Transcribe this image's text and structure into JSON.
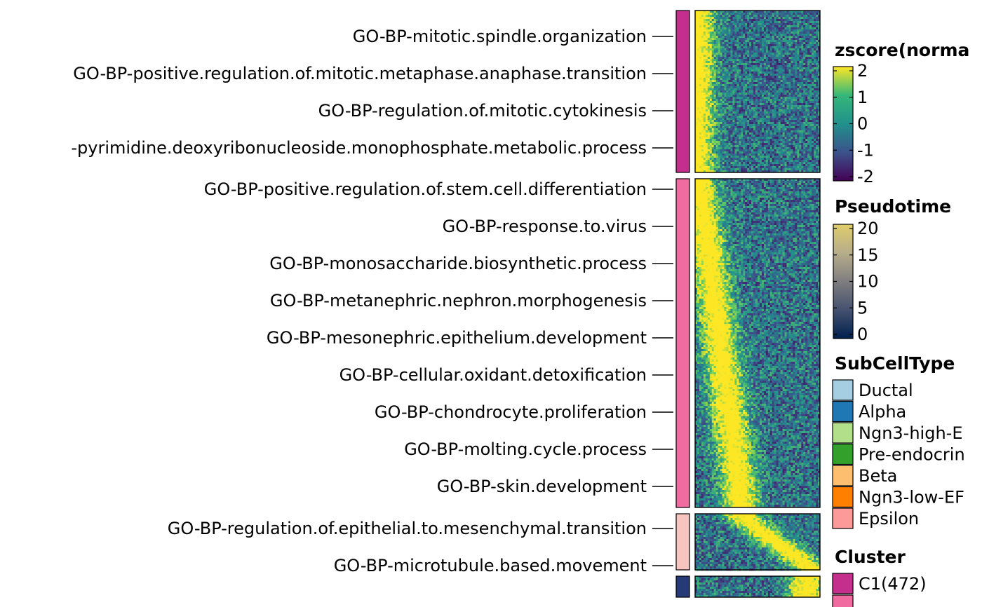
{
  "chart_data": {
    "type": "heatmap",
    "row_labels": [
      "GO-BP-mitotic.spindle.organization",
      "GO-BP-positive.regulation.of.mitotic.metaphase.anaphase.transition",
      "GO-BP-regulation.of.mitotic.cytokinesis",
      "-pyrimidine.deoxyribonucleoside.monophosphate.metabolic.process",
      "GO-BP-positive.regulation.of.stem.cell.differentiation",
      "GO-BP-response.to.virus",
      "GO-BP-monosaccharide.biosynthetic.process",
      "GO-BP-metanephric.nephron.morphogenesis",
      "GO-BP-mesonephric.epithelium.development",
      "GO-BP-cellular.oxidant.detoxification",
      "GO-BP-chondrocyte.proliferation",
      "GO-BP-molting.cycle.process",
      "GO-BP-skin.development",
      "GO-BP-regulation.of.epithelial.to.mesenchymal.transition",
      "GO-BP-microtubule.based.movement"
    ],
    "row_cluster": [
      "C1",
      "C1",
      "C1",
      "C1",
      "C2",
      "C2",
      "C2",
      "C2",
      "C2",
      "C2",
      "C2",
      "C2",
      "C2",
      "C3",
      "C3"
    ],
    "clusters": [
      {
        "id": "C1",
        "color": "#c42e8c",
        "peak_position": 0.0
      },
      {
        "id": "C2",
        "color": "#f06b9f",
        "peak_position": 0.25
      },
      {
        "id": "C3",
        "color": "#f7c4c0",
        "peak_position": 0.75
      },
      {
        "id": "C4",
        "color": "#253a76",
        "peak_position": 0.9
      }
    ],
    "color_scale": {
      "title": "zscore(norma",
      "ticks": [
        "2",
        "1",
        "0",
        "-1",
        "-2"
      ],
      "range": [
        -2,
        2
      ],
      "colors": [
        "#fde725",
        "#35b779",
        "#21918c",
        "#3b528b",
        "#440154"
      ]
    },
    "pseudotime_legend": {
      "title": "Pseudotime",
      "ticks": [
        "20",
        "15",
        "10",
        "5",
        "0"
      ],
      "range": [
        0,
        20
      ],
      "colors": [
        "#e0cd6c",
        "#b7ad8a",
        "#7f7e7f",
        "#45516f",
        "#00204d"
      ]
    },
    "subcelltype_legend": {
      "title": "SubCellType",
      "items": [
        {
          "label": "Ductal",
          "color": "#a6cee3"
        },
        {
          "label": "Alpha",
          "color": "#1f78b4"
        },
        {
          "label": "Ngn3-high-E",
          "color": "#b2df8a"
        },
        {
          "label": "Pre-endocrin",
          "color": "#33a02c"
        },
        {
          "label": "Beta",
          "color": "#fdbf6f"
        },
        {
          "label": "Ngn3-low-EF",
          "color": "#ff7f00"
        },
        {
          "label": "Epsilon",
          "color": "#fb9a99"
        }
      ]
    },
    "cluster_legend": {
      "title": "Cluster",
      "items": [
        {
          "label": "C1(472)",
          "color": "#c42e8c"
        }
      ]
    }
  }
}
